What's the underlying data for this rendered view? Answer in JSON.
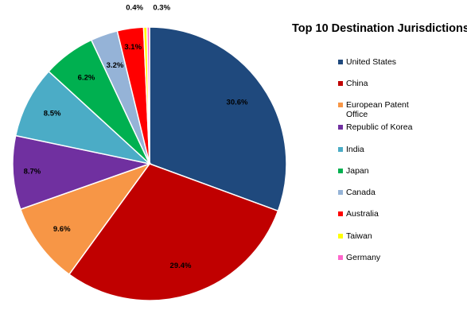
{
  "chart_data": {
    "type": "pie",
    "title": "Top 10 Destination Jurisdictions",
    "legend_position": "right",
    "categories": [
      "United States",
      "China",
      "European Patent Office",
      "Republic of Korea",
      "India",
      "Japan",
      "Canada",
      "Australia",
      "Taiwan",
      "Germany"
    ],
    "values": [
      30.6,
      29.4,
      9.6,
      8.7,
      8.5,
      6.2,
      3.2,
      3.1,
      0.4,
      0.3
    ],
    "data_labels": [
      "30.6%",
      "29.4%",
      "9.6%",
      "8.7%",
      "8.5%",
      "6.2%",
      "3.2%",
      "3.1%",
      "0.4%",
      "0.3%"
    ],
    "colors": [
      "#1F497D",
      "#C00000",
      "#F79646",
      "#7030A0",
      "#4BACC6",
      "#00B050",
      "#95B3D7",
      "#FF0000",
      "#FFFF00",
      "#FF66CC"
    ]
  }
}
